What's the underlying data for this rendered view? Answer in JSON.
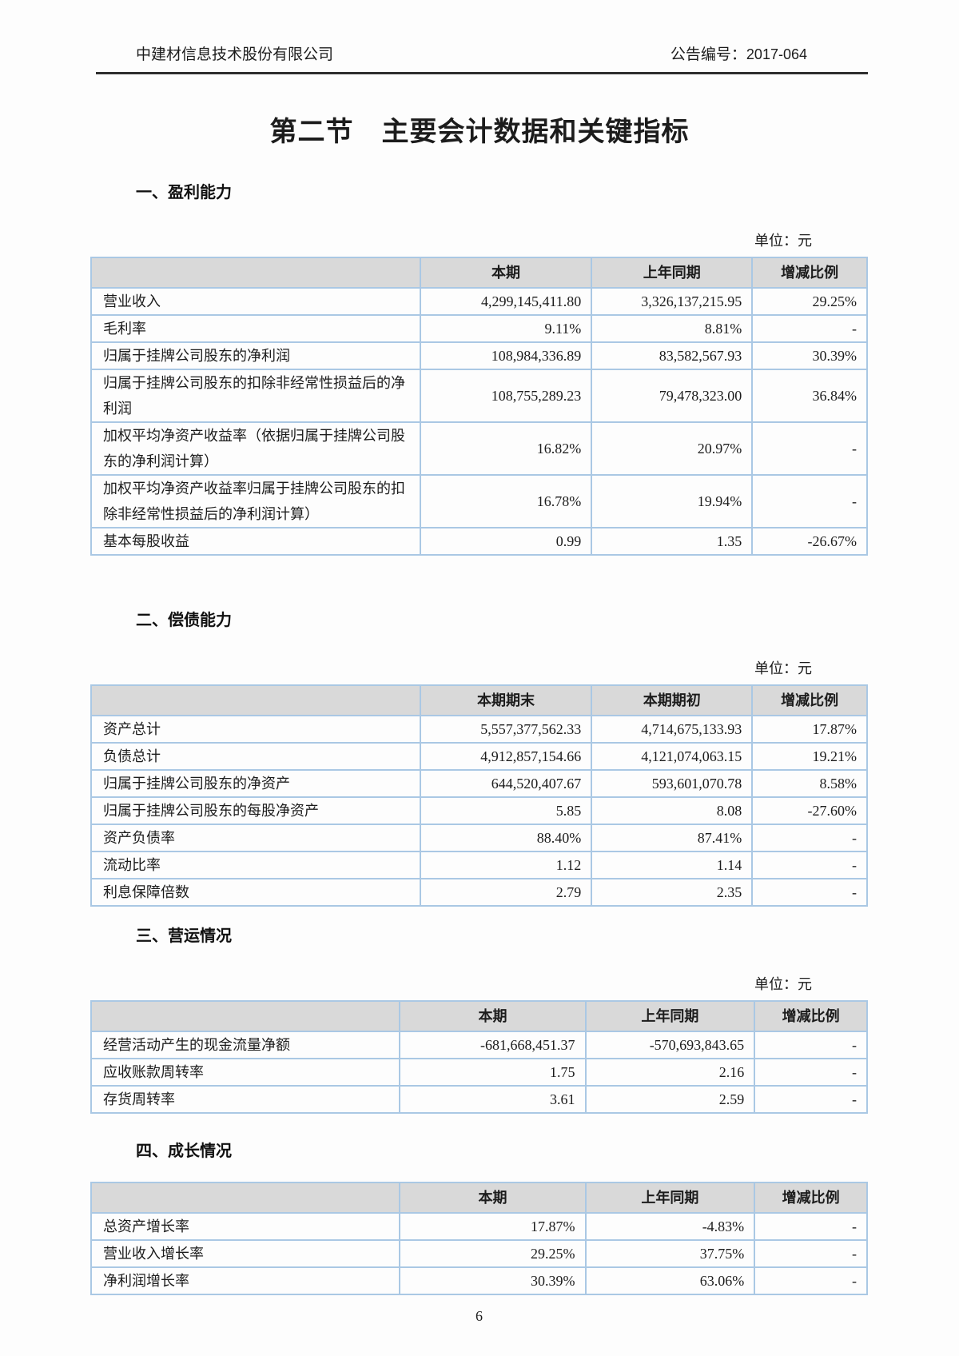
{
  "colors": {
    "table_border": "#aac8e4",
    "table_outer_border": "#8fb6da",
    "header_row_bg": "#d9d9d9",
    "header_rule": "#2e2e2e"
  },
  "page": {
    "header": {
      "company": "中建材信息技术股份有限公司",
      "announcement_label": "公告编号：",
      "announcement_no": "2017-064"
    },
    "title": "第二节　主要会计数据和关键指标",
    "footer": {
      "page_number": "6"
    }
  },
  "sections": [
    {
      "heading": "一、盈利能力",
      "unit_label": "单位：元",
      "table": {
        "columns": [
          "",
          "本期",
          "上年同期",
          "增减比例"
        ],
        "rows": [
          [
            "营业收入",
            "4,299,145,411.80",
            "3,326,137,215.95",
            "29.25%"
          ],
          [
            "毛利率",
            "9.11%",
            "8.81%",
            "-"
          ],
          [
            "归属于挂牌公司股东的净利润",
            "108,984,336.89",
            "83,582,567.93",
            "30.39%"
          ],
          [
            "归属于挂牌公司股东的扣除非经常性损益后的净利润",
            "108,755,289.23",
            "79,478,323.00",
            "36.84%"
          ],
          [
            "加权平均净资产收益率（依据归属于挂牌公司股东的净利润计算）",
            "16.82%",
            "20.97%",
            "-"
          ],
          [
            "加权平均净资产收益率归属于挂牌公司股东的扣除非经常性损益后的净利润计算）",
            "16.78%",
            "19.94%",
            "-"
          ],
          [
            "基本每股收益",
            "0.99",
            "1.35",
            "-26.67%"
          ]
        ]
      }
    },
    {
      "heading": "二、偿债能力",
      "unit_label": "单位：元",
      "table": {
        "columns": [
          "",
          "本期期末",
          "本期期初",
          "增减比例"
        ],
        "rows": [
          [
            "资产总计",
            "5,557,377,562.33",
            "4,714,675,133.93",
            "17.87%"
          ],
          [
            "负债总计",
            "4,912,857,154.66",
            "4,121,074,063.15",
            "19.21%"
          ],
          [
            "归属于挂牌公司股东的净资产",
            "644,520,407.67",
            "593,601,070.78",
            "8.58%"
          ],
          [
            "归属于挂牌公司股东的每股净资产",
            "5.85",
            "8.08",
            "-27.60%"
          ],
          [
            "资产负债率",
            "88.40%",
            "87.41%",
            "-"
          ],
          [
            "流动比率",
            "1.12",
            "1.14",
            "-"
          ],
          [
            "利息保障倍数",
            "2.79",
            "2.35",
            "-"
          ]
        ]
      }
    },
    {
      "heading": "三、营运情况",
      "unit_label": "单位：元",
      "table": {
        "columns": [
          "",
          "本期",
          "上年同期",
          "增减比例"
        ],
        "rows": [
          [
            "经营活动产生的现金流量净额",
            "-681,668,451.37",
            "-570,693,843.65",
            "-"
          ],
          [
            "应收账款周转率",
            "1.75",
            "2.16",
            "-"
          ],
          [
            "存货周转率",
            "3.61",
            "2.59",
            "-"
          ]
        ]
      }
    },
    {
      "heading": "四、成长情况",
      "table": {
        "columns": [
          "",
          "本期",
          "上年同期",
          "增减比例"
        ],
        "rows": [
          [
            "总资产增长率",
            "17.87%",
            "-4.83%",
            "-"
          ],
          [
            "营业收入增长率",
            "29.25%",
            "37.75%",
            "-"
          ],
          [
            "净利润增长率",
            "30.39%",
            "63.06%",
            "-"
          ]
        ]
      }
    }
  ]
}
